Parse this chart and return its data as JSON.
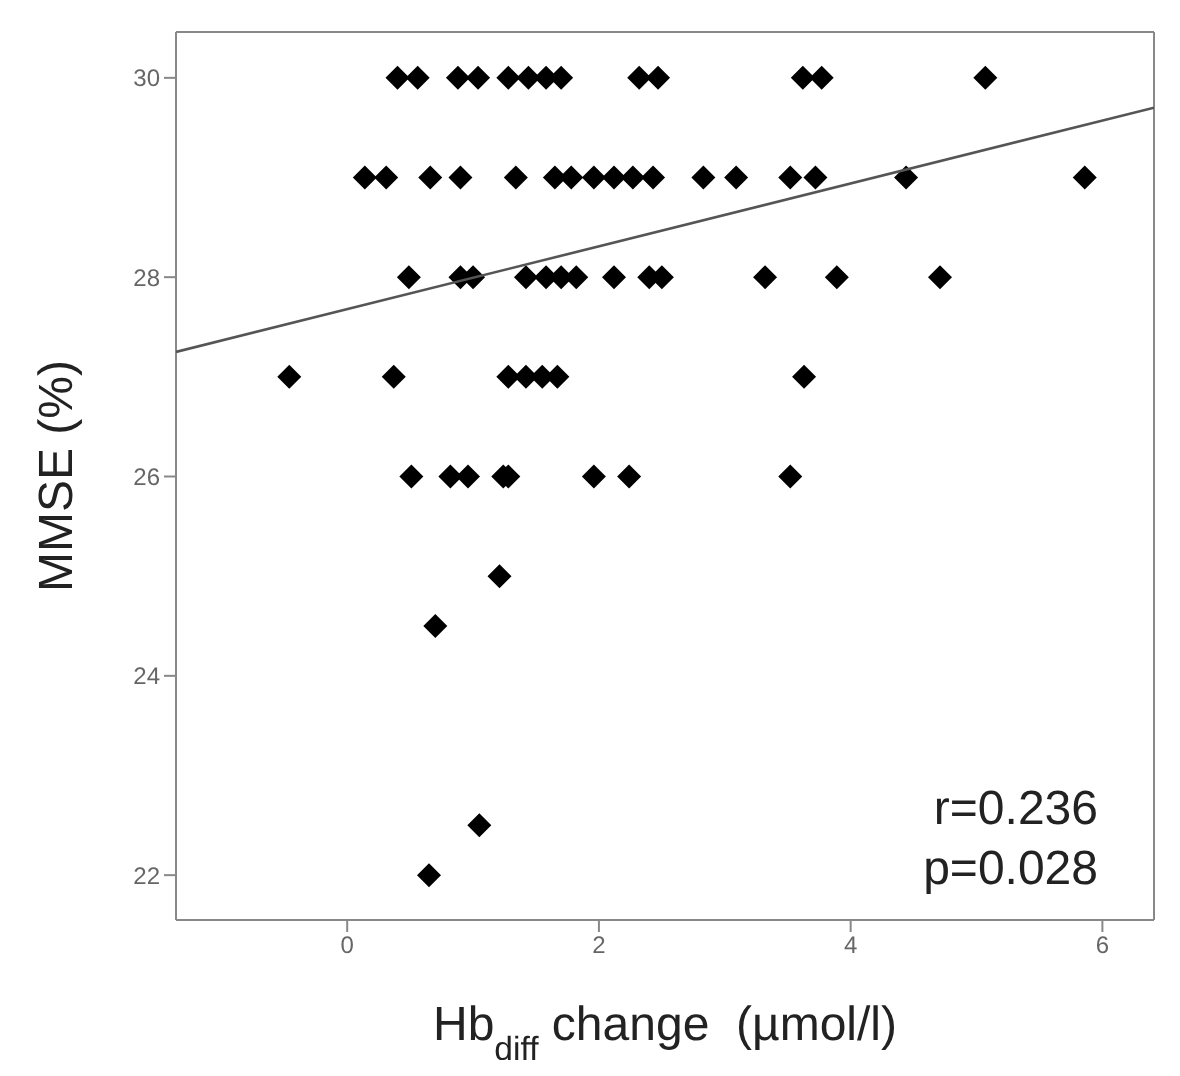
{
  "chart_data": {
    "type": "scatter",
    "xlabel": "Hb$_{diff}$ change  (µmol/l)",
    "ylabel": "MMSE (%)",
    "xlim": [
      -1.36,
      6.41
    ],
    "ylim": [
      21.55,
      30.46
    ],
    "xticks": [
      0,
      2,
      4,
      6
    ],
    "yticks": [
      22,
      24,
      26,
      28,
      30
    ],
    "grid": false,
    "marker": "diamond",
    "annotations": [
      "r=0.236",
      "p=0.028"
    ],
    "series": [
      {
        "color": "#000000",
        "x": [
          0.4,
          0.56,
          0.88,
          1.04,
          1.28,
          1.44,
          1.58,
          1.7,
          2.32,
          2.47,
          3.62,
          3.77,
          5.07,
          0.14,
          0.31,
          0.66,
          0.9,
          1.34,
          1.65,
          1.78,
          1.96,
          2.12,
          2.27,
          2.43,
          2.83,
          3.09,
          3.52,
          3.72,
          4.44,
          5.86,
          0.49,
          0.9,
          1.0,
          1.42,
          1.58,
          1.7,
          1.82,
          2.12,
          2.4,
          2.5,
          3.32,
          3.89,
          4.71,
          -0.46,
          0.37,
          1.28,
          1.42,
          1.55,
          1.67,
          3.63,
          0.51,
          0.82,
          0.96,
          1.24,
          1.28,
          1.96,
          2.24,
          3.52,
          1.21,
          0.7,
          1.05,
          0.65
        ],
        "values": [
          30,
          30,
          30,
          30,
          30,
          30,
          30,
          30,
          30,
          30,
          30,
          30,
          30,
          29,
          29,
          29,
          29,
          29,
          29,
          29,
          29,
          29,
          29,
          29,
          29,
          29,
          29,
          29,
          29,
          29,
          28,
          28,
          28,
          28,
          28,
          28,
          28,
          28,
          28,
          28,
          28,
          28,
          28,
          27,
          27,
          27,
          27,
          27,
          27,
          27,
          26,
          26,
          26,
          26,
          26,
          26,
          26,
          26,
          25,
          24.5,
          22.5,
          22
        ]
      },
      {
        "type": "line",
        "color": "#555555",
        "x": [
          -1.36,
          6.41
        ],
        "values": [
          27.25,
          29.7
        ],
        "marker": "none"
      }
    ]
  }
}
